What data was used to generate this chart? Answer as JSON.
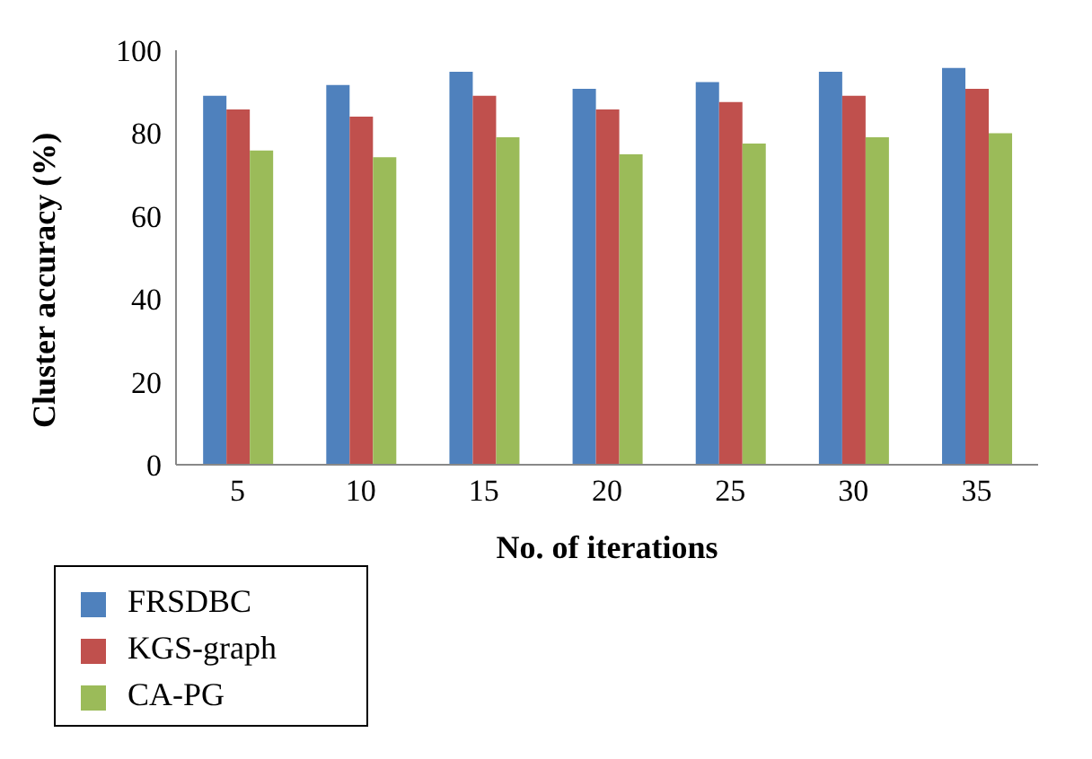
{
  "chart_data": {
    "type": "bar",
    "xlabel": "No. of iterations",
    "ylabel": "Cluster accuracy (%)",
    "categories": [
      "5",
      "10",
      "15",
      "20",
      "25",
      "30",
      "35"
    ],
    "series": [
      {
        "name": "FRSDBC",
        "color": "#4f81bd",
        "values": [
          89,
          91.6,
          94.8,
          90.7,
          92.3,
          94.8,
          95.7
        ]
      },
      {
        "name": "KGS-graph",
        "color": "#c0504d",
        "values": [
          85.7,
          84,
          89,
          85.7,
          87.5,
          89,
          90.7
        ]
      },
      {
        "name": "CA-PG",
        "color": "#9bbb59",
        "values": [
          75.8,
          74.2,
          79,
          74.9,
          77.5,
          79,
          80
        ]
      }
    ],
    "ylim": [
      0,
      100
    ],
    "yticks": [
      0,
      20,
      40,
      60,
      80,
      100
    ],
    "grid": false,
    "legend": "bottom left"
  }
}
